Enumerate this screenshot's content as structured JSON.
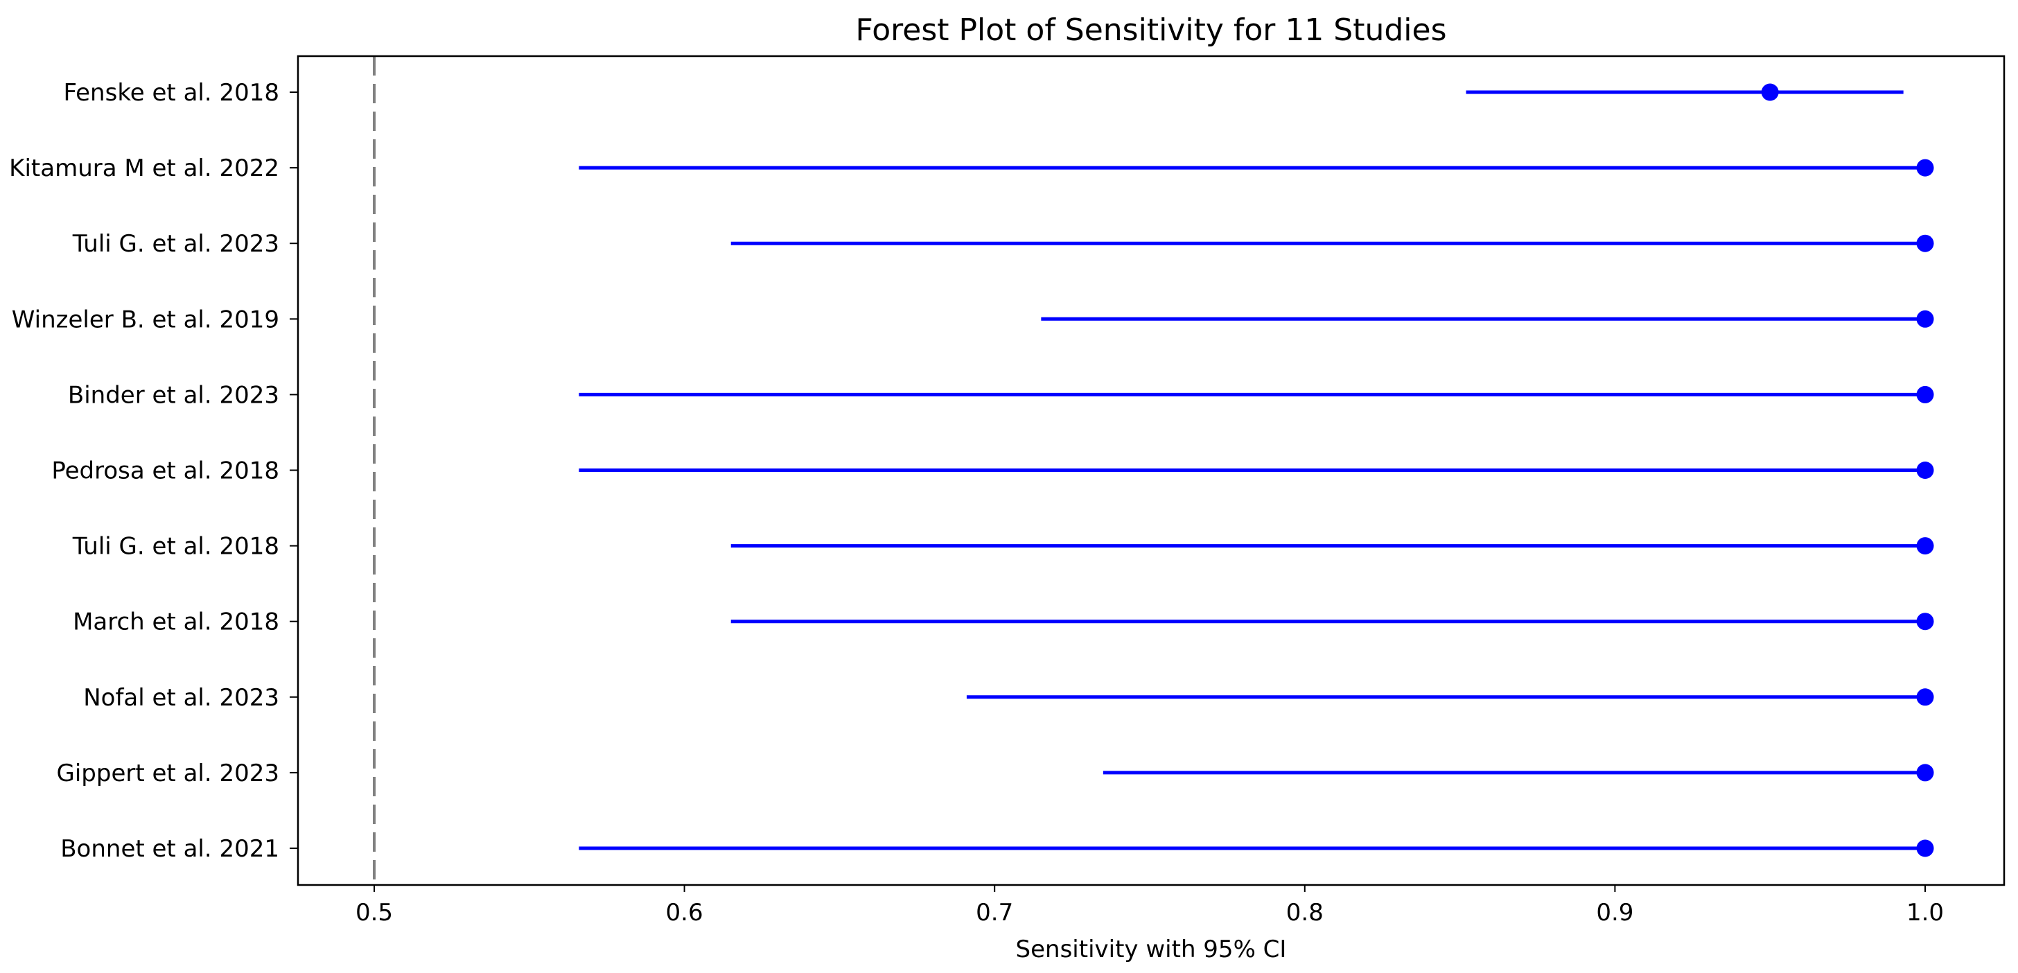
{
  "chart_data": {
    "type": "forest",
    "title": "Forest Plot of Sensitivity for 11 Studies",
    "xlabel": "Sensitivity with 95% CI",
    "ylabel": "",
    "xlim": [
      0.475,
      1.025
    ],
    "ylim": [
      -0.5,
      10.5
    ],
    "xticks": [
      0.5,
      0.6,
      0.7,
      0.8,
      0.9,
      1.0
    ],
    "xtick_labels": [
      "0.5",
      "0.6",
      "0.7",
      "0.8",
      "0.9",
      "1.0"
    ],
    "grid": false,
    "legend": null,
    "reference_line": {
      "x": 0.5,
      "style": "dashed",
      "color": "#808080"
    },
    "marker_color": "#0000ff",
    "line_color": "#0000ff",
    "studies": [
      {
        "label": "Fenske et al. 2018",
        "visible_label": "Fenske et al. 2018",
        "sensitivity": 0.95,
        "ci_lower": 0.852,
        "ci_upper": 0.993
      },
      {
        "label": "Kitamura M et al. 2022",
        "visible_label": "itamura M et al. 2022",
        "sensitivity": 1.0,
        "ci_lower": 0.566,
        "ci_upper": 1.0
      },
      {
        "label": "Tuli G. et al. 2023",
        "visible_label": "Tuli G. et al. 2023",
        "sensitivity": 1.0,
        "ci_lower": 0.615,
        "ci_upper": 1.0
      },
      {
        "label": "Winzeler B. et al. 2019",
        "visible_label": "Vinzeler B. et al. 2019",
        "sensitivity": 1.0,
        "ci_lower": 0.715,
        "ci_upper": 1.0
      },
      {
        "label": "Binder et al. 2023",
        "visible_label": "Binder et al. 2023",
        "sensitivity": 1.0,
        "ci_lower": 0.566,
        "ci_upper": 1.0
      },
      {
        "label": "Pedrosa et al. 2018",
        "visible_label": "Pedrosa et al. 2018",
        "sensitivity": 1.0,
        "ci_lower": 0.566,
        "ci_upper": 1.0
      },
      {
        "label": "Tuli G. et al. 2018",
        "visible_label": "Tuli G. et al. 2018",
        "sensitivity": 1.0,
        "ci_lower": 0.615,
        "ci_upper": 1.0
      },
      {
        "label": "March et al. 2018",
        "visible_label": "March et al. 2018",
        "sensitivity": 1.0,
        "ci_lower": 0.615,
        "ci_upper": 1.0
      },
      {
        "label": "Nofal et al. 2023",
        "visible_label": "Nofal et al. 2023",
        "sensitivity": 1.0,
        "ci_lower": 0.691,
        "ci_upper": 1.0
      },
      {
        "label": "Gippert et al. 2023",
        "visible_label": "Gippert et al. 2023",
        "sensitivity": 1.0,
        "ci_lower": 0.735,
        "ci_upper": 1.0
      },
      {
        "label": "Bonnet et al. 2021",
        "visible_label": "Bonnet et al. 2021",
        "sensitivity": 1.0,
        "ci_lower": 0.566,
        "ci_upper": 1.0
      }
    ]
  }
}
